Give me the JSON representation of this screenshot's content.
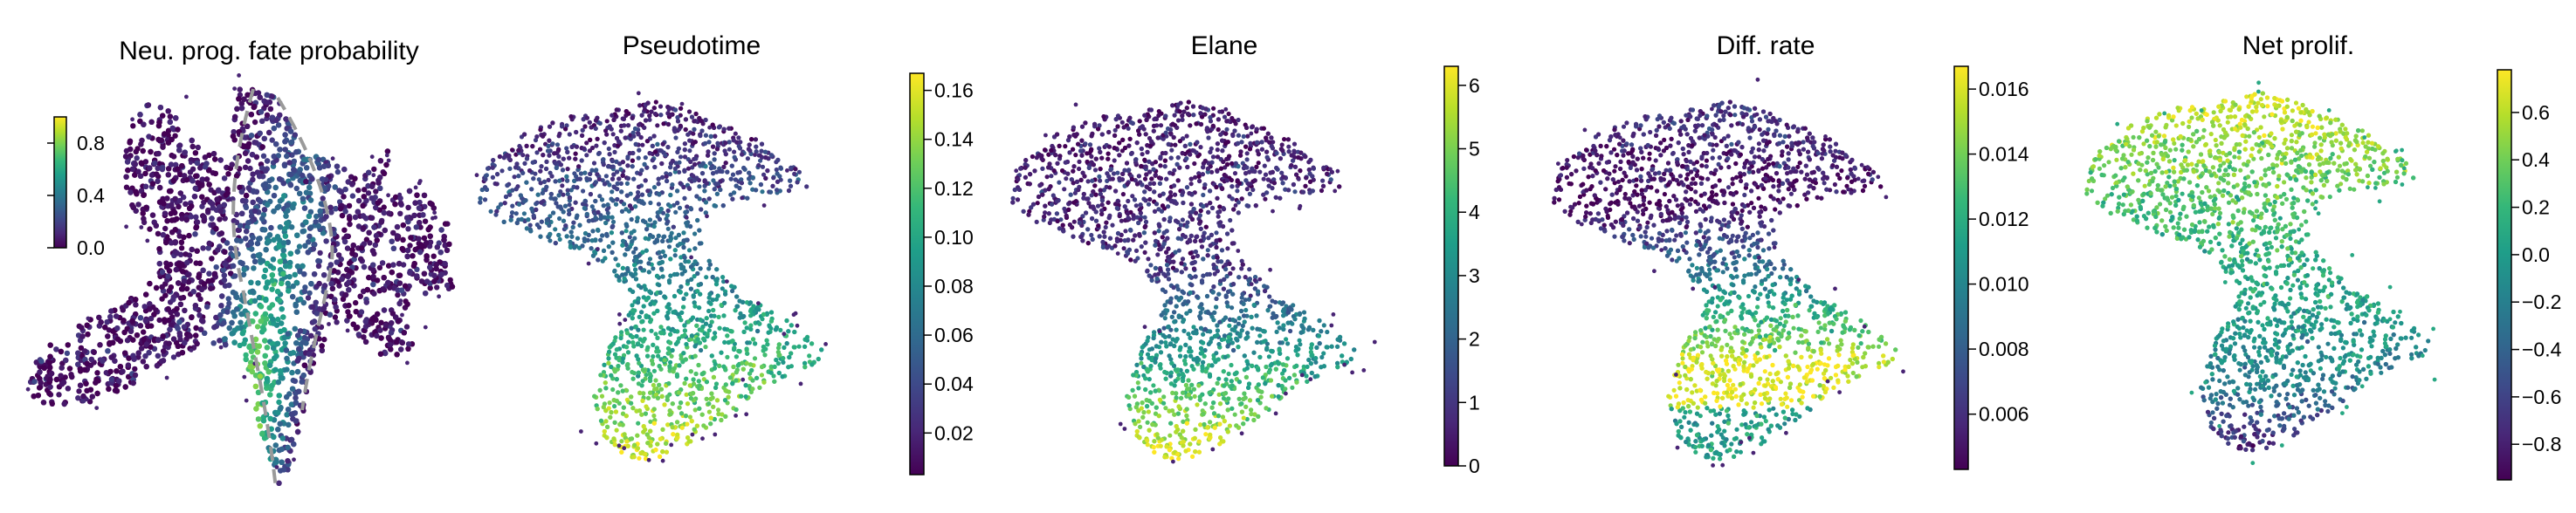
{
  "figure": {
    "colormap": "viridis",
    "colormap_stops": [
      "#440154",
      "#482878",
      "#3e4989",
      "#31688e",
      "#26828e",
      "#1f9e89",
      "#35b779",
      "#6ece58",
      "#b5de2b",
      "#fde725"
    ]
  },
  "chart_data": [
    {
      "type": "scatter",
      "title": "Neu. prog. fate probability",
      "colorbar": {
        "range": [
          0.0,
          1.0
        ],
        "ticks": [
          0.0,
          0.4,
          0.8
        ],
        "tick_labels": [
          "0.0",
          "0.4",
          "0.8"
        ],
        "placement": "inset-left"
      },
      "annotation": "dashed grey outline around high-probability region",
      "grid": false,
      "axes_visible": false
    },
    {
      "type": "scatter",
      "title": "Pseudotime",
      "colorbar": {
        "range": [
          0.003,
          0.167
        ],
        "ticks": [
          0.02,
          0.04,
          0.06,
          0.08,
          0.1,
          0.12,
          0.14,
          0.16
        ],
        "tick_labels": [
          "0.02",
          "0.04",
          "0.06",
          "0.08",
          "0.10",
          "0.12",
          "0.14",
          "0.16"
        ],
        "placement": "right"
      },
      "grid": false,
      "axes_visible": false
    },
    {
      "type": "scatter",
      "title": "Elane",
      "colorbar": {
        "range": [
          0,
          6.3
        ],
        "ticks": [
          0,
          1,
          2,
          3,
          4,
          5,
          6
        ],
        "tick_labels": [
          "0",
          "1",
          "2",
          "3",
          "4",
          "5",
          "6"
        ],
        "placement": "right"
      },
      "grid": false,
      "axes_visible": false
    },
    {
      "type": "scatter",
      "title": "Diff. rate",
      "colorbar": {
        "range": [
          0.0043,
          0.0167
        ],
        "ticks": [
          0.006,
          0.008,
          0.01,
          0.012,
          0.014,
          0.016
        ],
        "tick_labels": [
          "0.006",
          "0.008",
          "0.010",
          "0.012",
          "0.014",
          "0.016"
        ],
        "placement": "right"
      },
      "grid": false,
      "axes_visible": false
    },
    {
      "type": "scatter",
      "title": "Net prolif.",
      "colorbar": {
        "range": [
          -0.95,
          0.78
        ],
        "ticks": [
          -0.8,
          -0.6,
          -0.4,
          -0.2,
          0.0,
          0.2,
          0.4,
          0.6
        ],
        "tick_labels": [
          "−0.8",
          "−0.6",
          "−0.4",
          "−0.2",
          "0.0",
          "0.2",
          "0.4",
          "0.6"
        ],
        "placement": "right"
      },
      "grid": false,
      "axes_visible": false
    }
  ]
}
